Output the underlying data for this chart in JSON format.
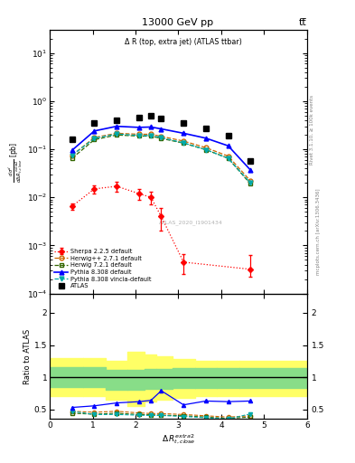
{
  "title_top": "13000 GeV pp",
  "title_right": "tt̅",
  "plot_title": "Δ R (top, extra jet) (ATLAS ttbar)",
  "watermark": "ATLAS_2020_I1901434",
  "right_label_top": "Rivet 3.1.10, ≥ 100k events",
  "right_label_bot": "mcplots.cern.ch [arXiv:1306.3436]",
  "x_values": [
    0.52,
    1.04,
    1.56,
    2.08,
    2.36,
    2.6,
    3.12,
    3.64,
    4.16,
    4.68
  ],
  "atlas_y": [
    0.16,
    0.35,
    0.4,
    0.45,
    0.5,
    0.44,
    0.35,
    0.27,
    0.19,
    0.058
  ],
  "herwig271_y": [
    0.075,
    0.175,
    0.215,
    0.205,
    0.205,
    0.185,
    0.148,
    0.108,
    0.072,
    0.022
  ],
  "herwig721_y": [
    0.065,
    0.158,
    0.198,
    0.188,
    0.188,
    0.168,
    0.134,
    0.098,
    0.065,
    0.019
  ],
  "pythia8308_y": [
    0.095,
    0.24,
    0.3,
    0.285,
    0.29,
    0.265,
    0.215,
    0.17,
    0.118,
    0.037
  ],
  "pythia_vinc_y": [
    0.075,
    0.168,
    0.208,
    0.193,
    0.193,
    0.174,
    0.136,
    0.098,
    0.065,
    0.02
  ],
  "sherpa_x": [
    0.52,
    1.04,
    1.56,
    2.08,
    2.36,
    2.6,
    3.12,
    4.68
  ],
  "sherpa_y": [
    0.0065,
    0.015,
    0.017,
    0.012,
    0.01,
    0.004,
    0.00045,
    0.00032
  ],
  "sherpa_yerr_lo": [
    0.001,
    0.003,
    0.004,
    0.003,
    0.003,
    0.002,
    0.0002,
    0.0001
  ],
  "sherpa_yerr_hi": [
    0.001,
    0.003,
    0.004,
    0.003,
    0.003,
    0.002,
    0.0002,
    0.0003
  ],
  "ratio_herwig271": [
    0.47,
    0.455,
    0.47,
    0.445,
    0.435,
    0.435,
    0.42,
    0.4,
    0.38,
    0.4
  ],
  "ratio_herwig721": [
    0.44,
    0.425,
    0.44,
    0.42,
    0.415,
    0.41,
    0.4,
    0.38,
    0.36,
    0.38
  ],
  "ratio_pythia8308": [
    0.53,
    0.555,
    0.6,
    0.62,
    0.64,
    0.79,
    0.57,
    0.63,
    0.62,
    0.63
  ],
  "ratio_vinc": [
    0.47,
    0.42,
    0.42,
    0.41,
    0.405,
    0.405,
    0.39,
    0.37,
    0.35,
    0.43
  ],
  "ratio_band_green_lo": [
    0.85,
    0.85,
    0.8,
    0.8,
    0.82,
    0.82,
    0.83,
    0.83,
    0.83,
    0.83
  ],
  "ratio_band_green_hi": [
    1.15,
    1.15,
    1.12,
    1.12,
    1.13,
    1.13,
    1.14,
    1.14,
    1.14,
    1.14
  ],
  "ratio_band_yellow_lo": [
    0.7,
    0.7,
    0.65,
    0.55,
    0.62,
    0.65,
    0.68,
    0.7,
    0.7,
    0.7
  ],
  "ratio_band_yellow_hi": [
    1.3,
    1.3,
    1.25,
    1.4,
    1.35,
    1.32,
    1.28,
    1.25,
    1.25,
    1.25
  ],
  "xlim": [
    0,
    6
  ],
  "ylim_main": [
    0.0001,
    30
  ],
  "ylim_ratio": [
    0.35,
    2.3
  ],
  "yticks_ratio": [
    0.5,
    1.0,
    1.5,
    2.0
  ],
  "ytick_labels_ratio": [
    "0.5",
    "1",
    "1.5",
    "2"
  ],
  "color_atlas": "#000000",
  "color_herwig271": "#cc6600",
  "color_herwig721": "#336600",
  "color_pythia8308": "#0000ff",
  "color_vinc": "#00aaaa",
  "color_sherpa": "#ff0000",
  "marker_atlas": "s",
  "marker_herwig271": "o",
  "marker_herwig721": "s",
  "marker_pythia8308": "^",
  "marker_vinc": "v",
  "marker_sherpa": "D"
}
